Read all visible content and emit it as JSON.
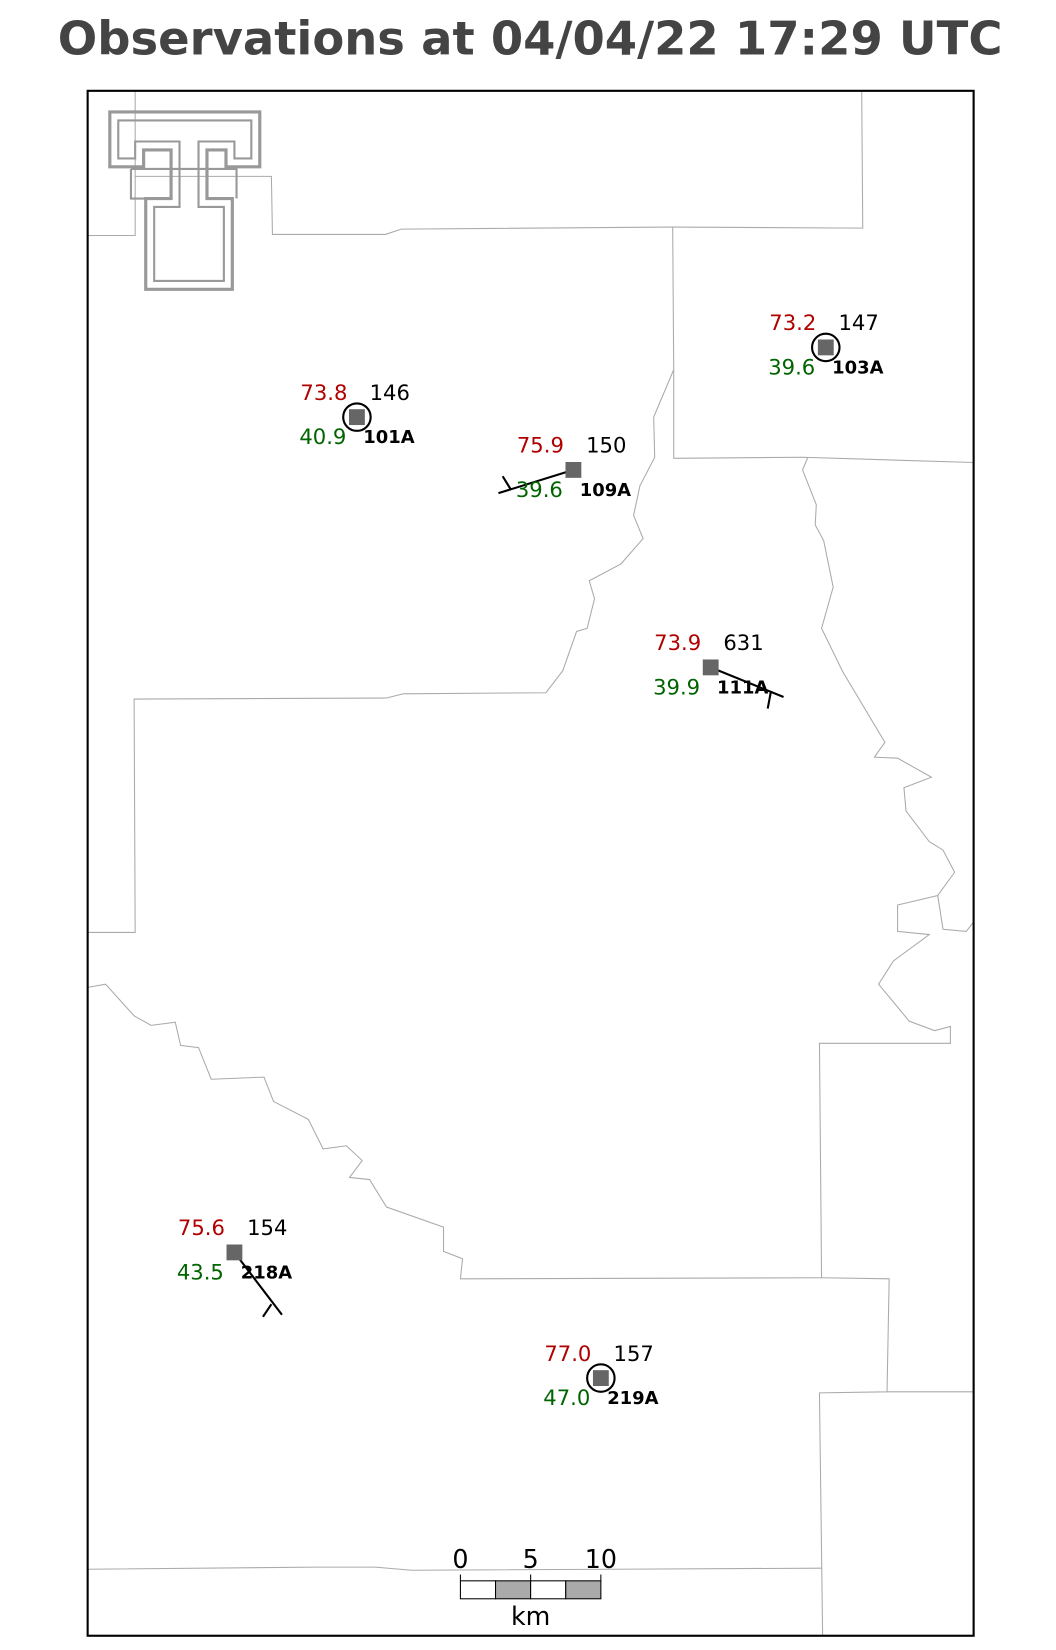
{
  "title": "Observations at 04/04/22 17:29 UTC",
  "stations": [
    {
      "id": "101A",
      "temperature": "73.8",
      "dewpoint": "40.9",
      "pressure": "146"
    },
    {
      "id": "103A",
      "temperature": "73.2",
      "dewpoint": "39.6",
      "pressure": "147"
    },
    {
      "id": "109A",
      "temperature": "75.9",
      "dewpoint": "39.6",
      "pressure": "150"
    },
    {
      "id": "111A",
      "temperature": "73.9",
      "dewpoint": "39.9",
      "pressure": "631"
    },
    {
      "id": "218A",
      "temperature": "75.6",
      "dewpoint": "43.5",
      "pressure": "154"
    },
    {
      "id": "219A",
      "temperature": "77.0",
      "dewpoint": "47.0",
      "pressure": "157"
    }
  ],
  "scale_bar": {
    "ticks": [
      0,
      5,
      10
    ],
    "unit": "km"
  }
}
